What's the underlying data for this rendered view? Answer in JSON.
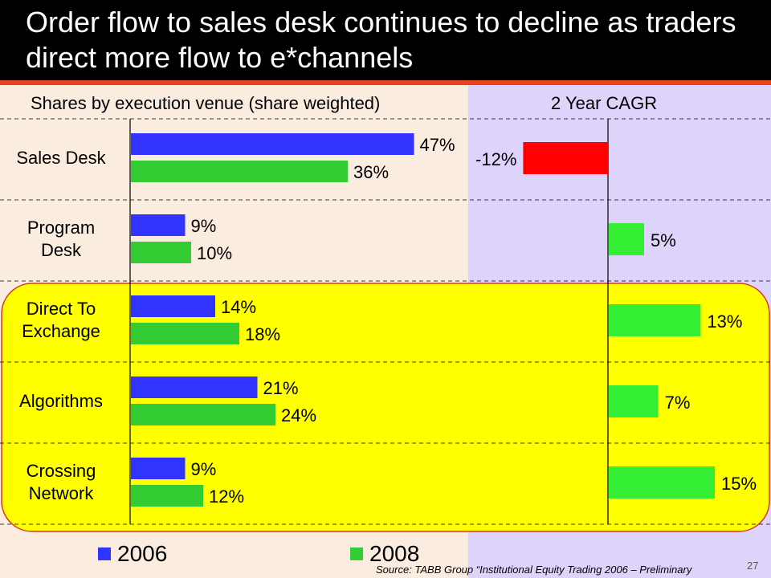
{
  "title": "Order flow to sales desk continues to decline as traders direct more flow to e*channels",
  "page_number": "27",
  "source": "Source: TABB Group “Institutional Equity Trading 2006 – Preliminary",
  "colors": {
    "title_bg": "#000000",
    "accent": "#e8431c",
    "left_panel": "#fbece0",
    "right_panel": "#ded4fb",
    "highlight": "#ffff00",
    "highlight_border": "#d8342a",
    "series_2006": "#3333ff",
    "series_2008": "#33cc33",
    "cagr_positive": "#33ee33",
    "cagr_negative": "#ff0000"
  },
  "chart_data": [
    {
      "type": "bar",
      "orientation": "horizontal",
      "title": "Shares by execution venue (share weighted)",
      "categories": [
        "Sales Desk",
        "Program Desk",
        "Direct To Exchange",
        "Algorithms",
        "Crossing Network"
      ],
      "category_lines": [
        [
          "Sales Desk"
        ],
        [
          "Program",
          "Desk"
        ],
        [
          "Direct To",
          "Exchange"
        ],
        [
          "Algorithms"
        ],
        [
          "Crossing",
          "Network"
        ]
      ],
      "series": [
        {
          "name": "2006",
          "values": [
            47,
            9,
            14,
            21,
            9
          ],
          "labels": [
            "47%",
            "9%",
            "14%",
            "21%",
            "9%"
          ]
        },
        {
          "name": "2008",
          "values": [
            36,
            10,
            18,
            24,
            12
          ],
          "labels": [
            "36%",
            "10%",
            "18%",
            "24%",
            "12%"
          ]
        }
      ],
      "unit": "%",
      "xlim": [
        0,
        50
      ],
      "grid": "dashed horizontal separators",
      "legend": "bottom"
    },
    {
      "type": "bar",
      "orientation": "horizontal",
      "title": "2 Year CAGR",
      "categories": [
        "Sales Desk",
        "Program Desk",
        "Direct To Exchange",
        "Algorithms",
        "Crossing Network"
      ],
      "values": [
        -12,
        5,
        13,
        7,
        15
      ],
      "labels": [
        "-12%",
        "5%",
        "13%",
        "7%",
        "15%"
      ],
      "unit": "%",
      "xlim": [
        -12,
        15
      ]
    }
  ],
  "highlight": {
    "categories": [
      "Direct To Exchange",
      "Algorithms",
      "Crossing Network"
    ]
  }
}
